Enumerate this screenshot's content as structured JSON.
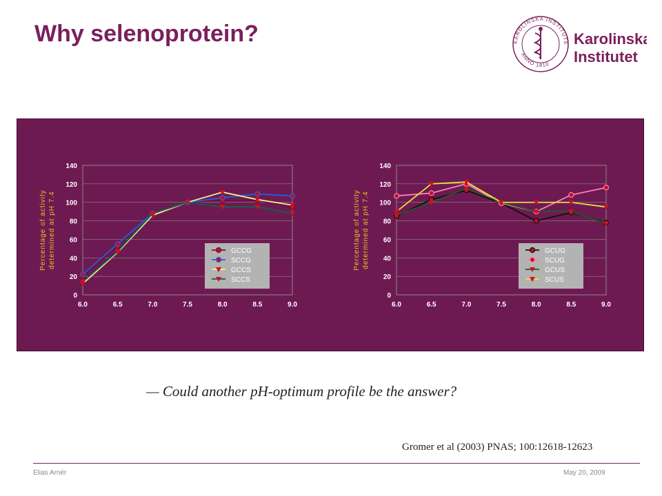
{
  "slide": {
    "title": "Why selenoprotein?",
    "question": "— Could another pH-optimum profile be the answer?",
    "citation": "Gromer et al (2003) PNAS; 100:12618-12623",
    "footer_left": "Elias Arnér",
    "footer_right": "May 20, 2009"
  },
  "logo": {
    "word1": "Karolinska",
    "word2": "Institutet",
    "seal_ring": "KAROLINSKA INSTITUTET",
    "seal_year": "ANNO 1810",
    "color": "#7a1f5c"
  },
  "colors": {
    "panel": "#6e1a52",
    "axis_label": "#f0c020",
    "series": [
      "#6b1040",
      "#2060e0",
      "#f0f090",
      "#106048",
      "#101010",
      "#ff80b0",
      "#1e5e20",
      "#e8e040",
      "#20e020"
    ]
  },
  "chart_data": [
    {
      "type": "line",
      "title": "",
      "xlabel": "",
      "ylabel": "Percentage of activity determined at pH 7.4",
      "ylabel_lines": [
        "Percentage of activity",
        "determined at pH 7.4"
      ],
      "x": [
        6.0,
        6.5,
        7.0,
        7.5,
        8.0,
        8.5,
        9.0
      ],
      "xticks": [
        "6.0",
        "6.5",
        "7.0",
        "7.5",
        "8.0",
        "8.5",
        "9.0"
      ],
      "yticks": [
        "0",
        "20",
        "40",
        "60",
        "80",
        "100",
        "120",
        "140"
      ],
      "xlim": [
        6.0,
        9.0
      ],
      "ylim": [
        0,
        140
      ],
      "legend_position": "lower-right",
      "series": [
        {
          "name": "GCCG",
          "values": [
            20,
            53,
            88,
            100,
            102,
            102,
            95
          ],
          "color": "#6b1040",
          "marker": "circle"
        },
        {
          "name": "SCCG",
          "values": [
            22,
            55,
            88,
            100,
            105,
            109,
            107
          ],
          "color": "#2060e0",
          "marker": "circle"
        },
        {
          "name": "GCCS",
          "values": [
            12,
            46,
            86,
            100,
            111,
            103,
            97
          ],
          "color": "#f0f090",
          "marker": "triangle"
        },
        {
          "name": "SCCS",
          "values": [
            14,
            47,
            88,
            100,
            95,
            95,
            88
          ],
          "color": "#106048",
          "marker": "triangle"
        }
      ]
    },
    {
      "type": "line",
      "title": "",
      "xlabel": "",
      "ylabel": "Percentage of activity determined at pH 7.4",
      "ylabel_lines": [
        "Percentage of activity",
        "determined at pH 7.4"
      ],
      "x": [
        6.0,
        6.5,
        7.0,
        7.5,
        8.0,
        8.5,
        9.0
      ],
      "xticks": [
        "6.0",
        "6.5",
        "7.0",
        "7.5",
        "8.0",
        "8.5",
        "9.0"
      ],
      "yticks": [
        "0",
        "20",
        "40",
        "60",
        "80",
        "100",
        "120",
        "140"
      ],
      "xlim": [
        6.0,
        9.0
      ],
      "ylim": [
        0,
        140
      ],
      "legend_position": "lower-right",
      "series": [
        {
          "name": "GCUG",
          "values": [
            85,
            103,
            113,
            99,
            80,
            89,
            78
          ],
          "color": "#101010",
          "marker": "circle"
        },
        {
          "name": "SCUG",
          "values": [
            107,
            110,
            120,
            99,
            90,
            108,
            116
          ],
          "color": "#ff80b0",
          "marker": "circle"
        },
        {
          "name": "GCUS",
          "values": [
            86,
            100,
            115,
            100,
            90,
            90,
            77
          ],
          "color": "#1e5e20",
          "marker": "triangle"
        },
        {
          "name": "SCUS",
          "values": [
            90,
            120,
            122,
            100,
            100,
            100,
            95
          ],
          "color": "#e8e040",
          "marker": "triangle"
        }
      ]
    }
  ]
}
